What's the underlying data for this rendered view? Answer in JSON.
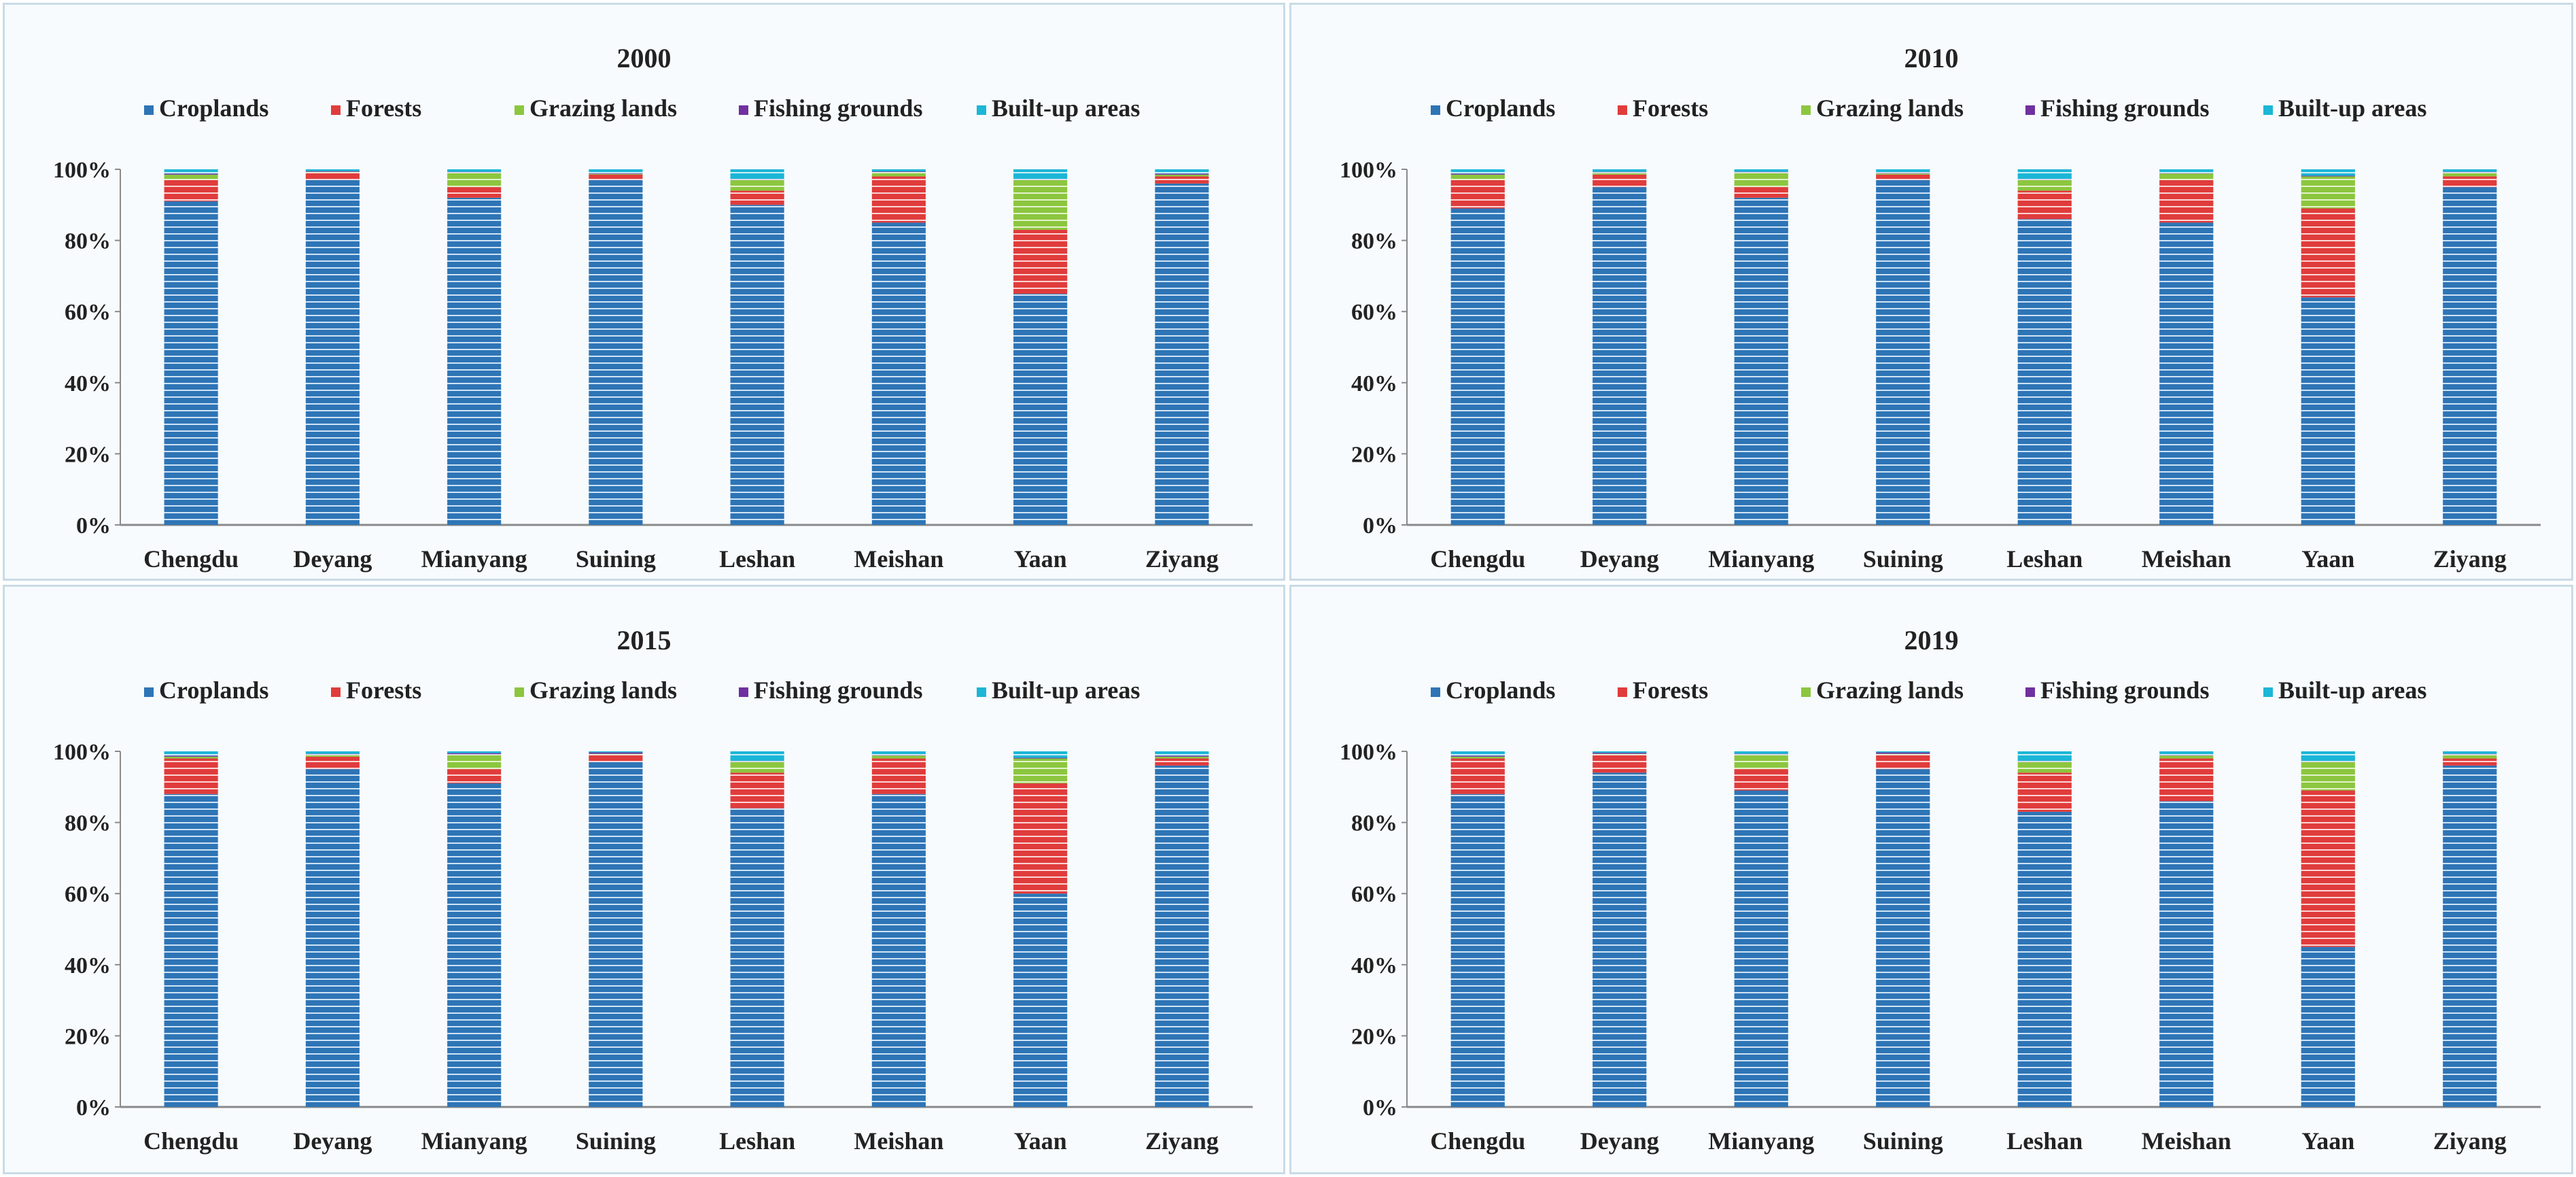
{
  "chart_data": [
    {
      "type": "bar",
      "stacked": true,
      "title": "2000",
      "categories": [
        "Chengdu",
        "Deyang",
        "Mianyang",
        "Suining",
        "Leshan",
        "Meishan",
        "Yaan",
        "Ziyang"
      ],
      "ylim": [
        0,
        100
      ],
      "yticks": [
        "0%",
        "20%",
        "40%",
        "60%",
        "80%",
        "100%"
      ],
      "legend_position": "top",
      "series": [
        {
          "name": "Croplands",
          "color": "#2e75b6",
          "values": [
            91,
            97,
            92,
            97,
            90,
            85,
            65,
            96
          ]
        },
        {
          "name": "Forests",
          "color": "#e03c3c",
          "values": [
            6,
            2,
            3,
            1.5,
            4,
            13,
            18,
            2
          ]
        },
        {
          "name": "Grazing lands",
          "color": "#8cc63f",
          "values": [
            1.5,
            0.3,
            4,
            0.2,
            3,
            1.2,
            14,
            0.5
          ]
        },
        {
          "name": "Fishing grounds",
          "color": "#7030a0",
          "values": [
            0.3,
            0.2,
            0.3,
            0.3,
            0.3,
            0.2,
            0.2,
            0.3
          ]
        },
        {
          "name": "Built-up areas",
          "color": "#1cb6d6",
          "values": [
            1.2,
            0.5,
            0.7,
            1.0,
            2.7,
            0.6,
            2.8,
            1.2
          ]
        }
      ]
    },
    {
      "type": "bar",
      "stacked": true,
      "title": "2010",
      "categories": [
        "Chengdu",
        "Deyang",
        "Mianyang",
        "Suining",
        "Leshan",
        "Meishan",
        "Yaan",
        "Ziyang"
      ],
      "ylim": [
        0,
        100
      ],
      "yticks": [
        "0%",
        "20%",
        "40%",
        "60%",
        "80%",
        "100%"
      ],
      "legend_position": "top",
      "series": [
        {
          "name": "Croplands",
          "color": "#2e75b6",
          "values": [
            89,
            95,
            92,
            97,
            86,
            85,
            64,
            95
          ]
        },
        {
          "name": "Forests",
          "color": "#e03c3c",
          "values": [
            8,
            3.5,
            3,
            1.5,
            8,
            12,
            25,
            3
          ]
        },
        {
          "name": "Grazing lands",
          "color": "#8cc63f",
          "values": [
            1.5,
            0.5,
            4,
            0.3,
            3,
            1.8,
            9,
            1
          ]
        },
        {
          "name": "Fishing grounds",
          "color": "#7030a0",
          "values": [
            0.3,
            0.3,
            0.3,
            0.4,
            0.3,
            0.2,
            0.2,
            0.3
          ]
        },
        {
          "name": "Built-up areas",
          "color": "#1cb6d6",
          "values": [
            1.2,
            0.7,
            0.7,
            0.8,
            2.7,
            1.0,
            1.8,
            0.7
          ]
        }
      ]
    },
    {
      "type": "bar",
      "stacked": true,
      "title": "2015",
      "categories": [
        "Chengdu",
        "Deyang",
        "Mianyang",
        "Suining",
        "Leshan",
        "Meishan",
        "Yaan",
        "Ziyang"
      ],
      "ylim": [
        0,
        100
      ],
      "yticks": [
        "0%",
        "20%",
        "40%",
        "60%",
        "80%",
        "100%"
      ],
      "legend_position": "top",
      "series": [
        {
          "name": "Croplands",
          "color": "#2e75b6",
          "values": [
            88,
            95,
            91,
            97,
            84,
            88,
            60,
            96
          ]
        },
        {
          "name": "Forests",
          "color": "#e03c3c",
          "values": [
            10,
            3.5,
            4,
            2,
            10,
            10,
            31,
            2
          ]
        },
        {
          "name": "Grazing lands",
          "color": "#8cc63f",
          "values": [
            0.5,
            0.5,
            4,
            0.3,
            3,
            0.8,
            7,
            0.5
          ]
        },
        {
          "name": "Fishing grounds",
          "color": "#7030a0",
          "values": [
            0.3,
            0.3,
            0.5,
            0.4,
            0.3,
            0.3,
            0.2,
            0.3
          ]
        },
        {
          "name": "Built-up areas",
          "color": "#1cb6d6",
          "values": [
            1.2,
            0.7,
            0.5,
            0.3,
            2.7,
            0.9,
            1.8,
            1.2
          ]
        }
      ]
    },
    {
      "type": "bar",
      "stacked": true,
      "title": "2019",
      "categories": [
        "Chengdu",
        "Deyang",
        "Mianyang",
        "Suining",
        "Leshan",
        "Meishan",
        "Yaan",
        "Ziyang"
      ],
      "ylim": [
        0,
        100
      ],
      "yticks": [
        "0%",
        "20%",
        "40%",
        "60%",
        "80%",
        "100%"
      ],
      "legend_position": "top",
      "series": [
        {
          "name": "Croplands",
          "color": "#2e75b6",
          "values": [
            88,
            94,
            89,
            95,
            83,
            86,
            45,
            96
          ]
        },
        {
          "name": "Forests",
          "color": "#e03c3c",
          "values": [
            10,
            5,
            6,
            4,
            11,
            12,
            44,
            2
          ]
        },
        {
          "name": "Grazing lands",
          "color": "#8cc63f",
          "values": [
            0.5,
            0.3,
            4,
            0.3,
            3,
            0.8,
            8,
            1
          ]
        },
        {
          "name": "Fishing grounds",
          "color": "#7030a0",
          "values": [
            0.3,
            0.3,
            0.3,
            0.4,
            0.3,
            0.3,
            0.2,
            0.3
          ]
        },
        {
          "name": "Built-up areas",
          "color": "#1cb6d6",
          "values": [
            1.2,
            0.4,
            0.7,
            0.3,
            2.7,
            0.9,
            2.8,
            0.7
          ]
        }
      ]
    }
  ]
}
